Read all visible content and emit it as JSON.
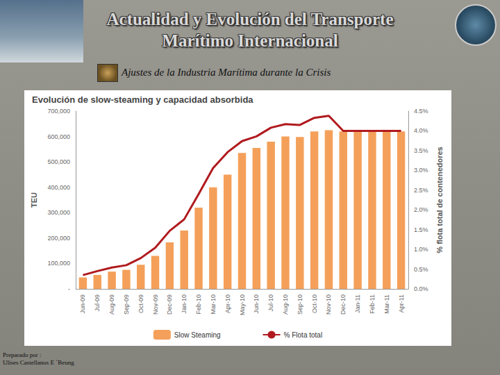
{
  "slide": {
    "title": [
      "Actualidad y Evolución del Transporte",
      "Marítimo Internacional"
    ],
    "subtitle": "Ajustes de la Industria Marítima durante la Crisis",
    "footer": [
      "Preparado por :",
      "Ulises Castellanos E ´Beung"
    ]
  },
  "chart_data": {
    "type": "bar",
    "title": "Evolución de slow-steaming y capacidad absorbida",
    "categories": [
      "Jun-09",
      "Jul-09",
      "Aug-09",
      "Sep-09",
      "Oct-09",
      "Nov-09",
      "Dec-09",
      "Jan-10",
      "Feb-10",
      "Mar-10",
      "Apr-10",
      "May-10",
      "Jun-10",
      "Jul-10",
      "Aug-10",
      "Sep-10",
      "Oct-10",
      "Nov-10",
      "Dec-10",
      "Jan-11",
      "Feb-11",
      "Mar-11",
      "Apr-11"
    ],
    "series": [
      {
        "name": "Slow Steaming",
        "type": "bar",
        "color": "#f4a05a",
        "values": [
          45000,
          55000,
          68000,
          75000,
          95000,
          130000,
          183000,
          230000,
          320000,
          400000,
          450000,
          535000,
          555000,
          580000,
          600000,
          598000,
          620000,
          625000,
          620000,
          620000,
          620000,
          620000,
          620000
        ]
      },
      {
        "name": "% Flota total",
        "type": "line",
        "color": "#b01a1e",
        "axis": "y2",
        "values": [
          0.35,
          0.45,
          0.54,
          0.6,
          0.78,
          1.04,
          1.47,
          1.76,
          2.4,
          3.06,
          3.46,
          3.74,
          3.86,
          4.08,
          4.17,
          4.15,
          4.33,
          4.38,
          4.0,
          4.0,
          4.0,
          4.0,
          4.0
        ]
      }
    ],
    "ylabel": "TEU",
    "y2label": "% flota total de contenedores",
    "ylim": [
      0,
      700000
    ],
    "yticks": [
      {
        "value": 0,
        "label": "-"
      },
      {
        "value": 100000,
        "label": "100,000"
      },
      {
        "value": 200000,
        "label": "200,000"
      },
      {
        "value": 300000,
        "label": "300,000"
      },
      {
        "value": 400000,
        "label": "400,000"
      },
      {
        "value": 500000,
        "label": "500,000"
      },
      {
        "value": 600000,
        "label": "600,000"
      },
      {
        "value": 700000,
        "label": "700,000"
      }
    ],
    "y2lim": [
      0,
      4.5
    ],
    "y2ticks": [
      {
        "value": 0,
        "label": "0.0%"
      },
      {
        "value": 0.5,
        "label": "0.5%"
      },
      {
        "value": 1,
        "label": "1.0%"
      },
      {
        "value": 1.5,
        "label": "1.5%"
      },
      {
        "value": 2,
        "label": "2.0%"
      },
      {
        "value": 2.5,
        "label": "2.5%"
      },
      {
        "value": 3,
        "label": "3.0%"
      },
      {
        "value": 3.5,
        "label": "3.5%"
      },
      {
        "value": 4,
        "label": "4.0%"
      },
      {
        "value": 4.5,
        "label": "4.5%"
      }
    ],
    "grid": false,
    "legend": "bottom"
  }
}
